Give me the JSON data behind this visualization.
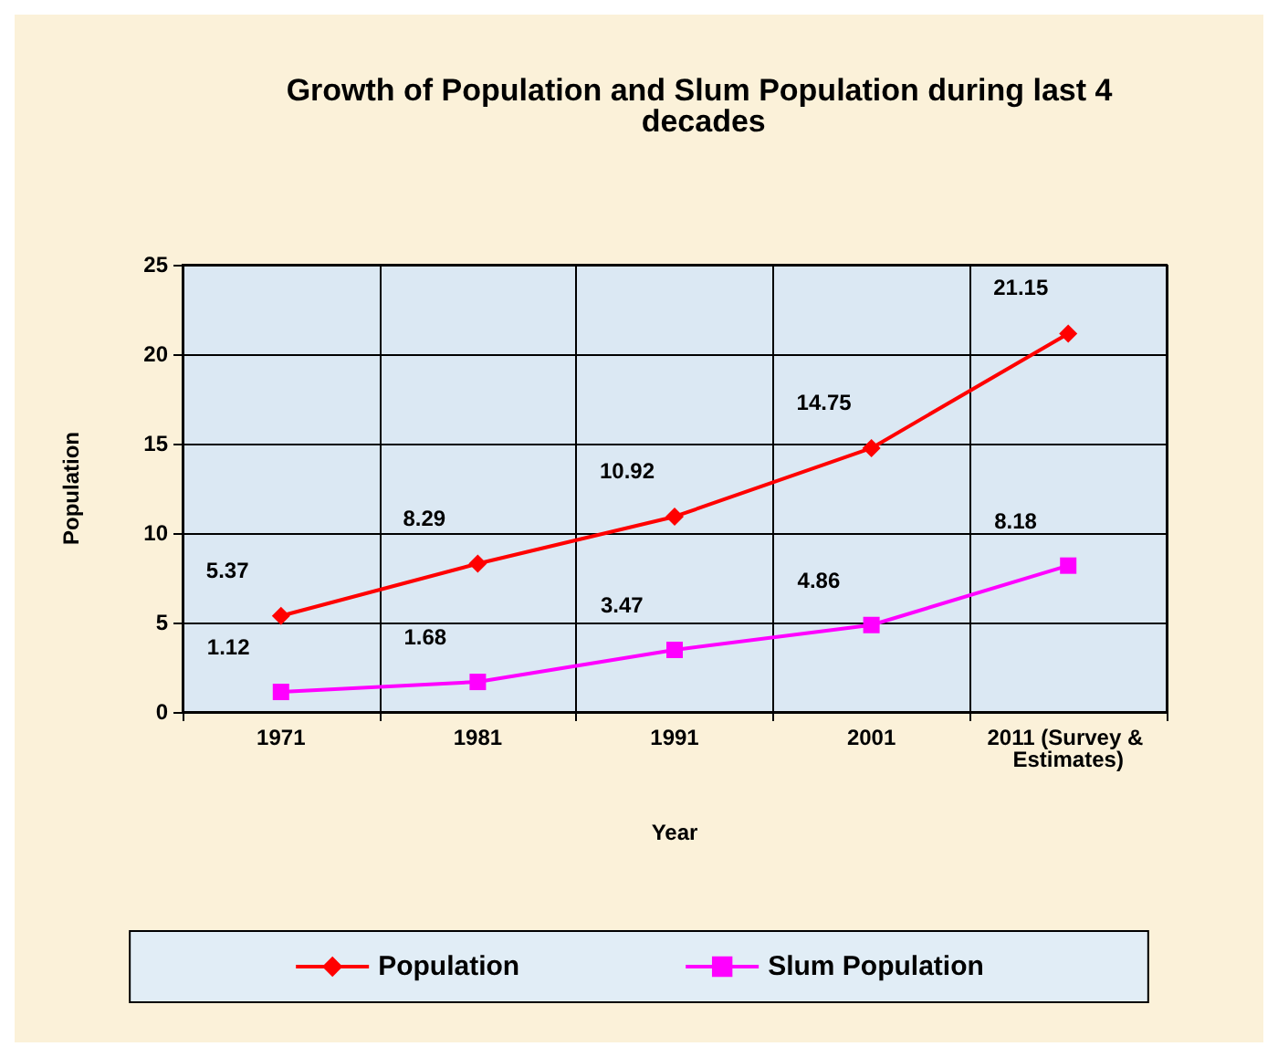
{
  "chart_data": {
    "type": "line",
    "title": "Growth of Population and Slum Population during last 4 decades",
    "xlabel": "Year",
    "ylabel": "Population",
    "categories": [
      "1971",
      "1981",
      "1991",
      "2001",
      "2011 (Survey & Estimates)"
    ],
    "series": [
      {
        "name": "Population",
        "color": "#ff0000",
        "marker": "diamond",
        "values": [
          5.37,
          8.29,
          10.92,
          14.75,
          21.15
        ]
      },
      {
        "name": "Slum Population",
        "color": "#ff00ff",
        "marker": "square",
        "values": [
          1.12,
          1.68,
          3.47,
          4.86,
          8.18
        ]
      }
    ],
    "ylim": [
      0,
      25
    ],
    "yticks": [
      0,
      5,
      10,
      15,
      20,
      25
    ],
    "grid": true,
    "legend": "bottom",
    "data_labels": true
  }
}
